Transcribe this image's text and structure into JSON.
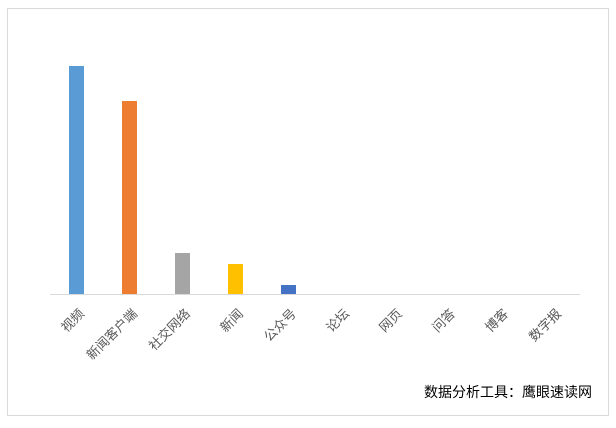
{
  "chart_data": {
    "type": "bar",
    "categories": [
      "视频",
      "新闻客户端",
      "社交网络",
      "新闻",
      "公众号",
      "论坛",
      "网页",
      "问答",
      "博客",
      "数字报"
    ],
    "values": [
      228,
      193,
      41,
      30,
      9,
      0,
      0,
      0,
      0,
      0
    ],
    "colors": [
      "#5b9bd5",
      "#ed7d31",
      "#a5a5a5",
      "#ffc000",
      "#4472c4",
      "#70ad47",
      "#255e91",
      "#9e480e",
      "#636363",
      "#997300"
    ],
    "ylim": [
      0,
      250
    ],
    "annotation": "数据分析工具：鹰眼速读网"
  }
}
